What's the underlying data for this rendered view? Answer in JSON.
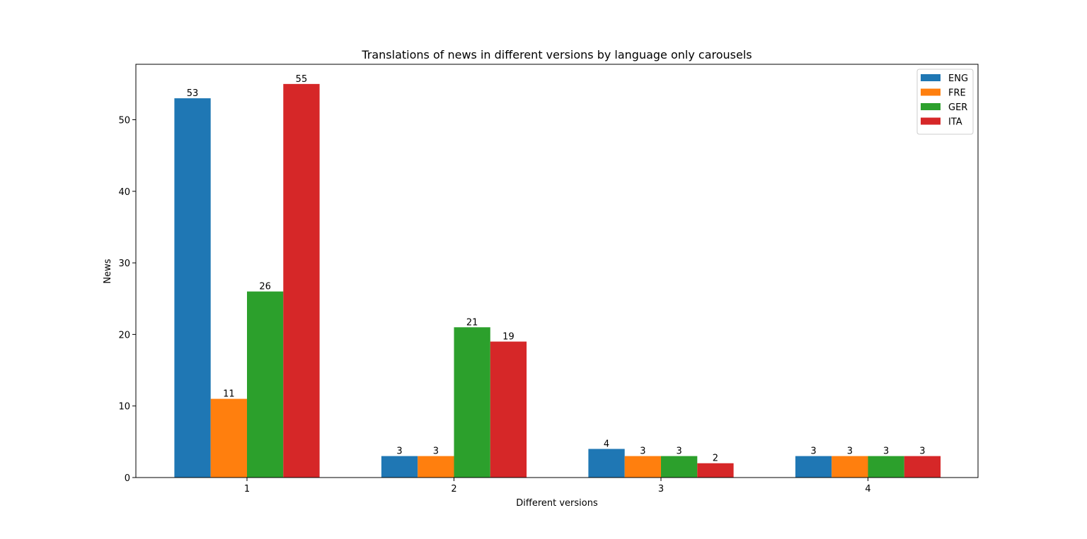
{
  "chart_data": {
    "type": "bar",
    "title": "Translations of news in different versions by language only carousels",
    "xlabel": "Different versions",
    "ylabel": "News",
    "categories": [
      "1",
      "2",
      "3",
      "4"
    ],
    "series": [
      {
        "name": "ENG",
        "color": "#1f77b4",
        "values": [
          53,
          3,
          4,
          3
        ]
      },
      {
        "name": "FRE",
        "color": "#ff7f0e",
        "values": [
          11,
          3,
          3,
          3
        ]
      },
      {
        "name": "GER",
        "color": "#2ca02c",
        "values": [
          26,
          21,
          3,
          3
        ]
      },
      {
        "name": "ITA",
        "color": "#d62728",
        "values": [
          55,
          19,
          2,
          3
        ]
      }
    ],
    "ylim": [
      0,
      57.75
    ],
    "yticks": [
      0,
      10,
      20,
      30,
      40,
      50
    ],
    "grid": false,
    "legend_position": "top-right",
    "data_labels": true
  }
}
